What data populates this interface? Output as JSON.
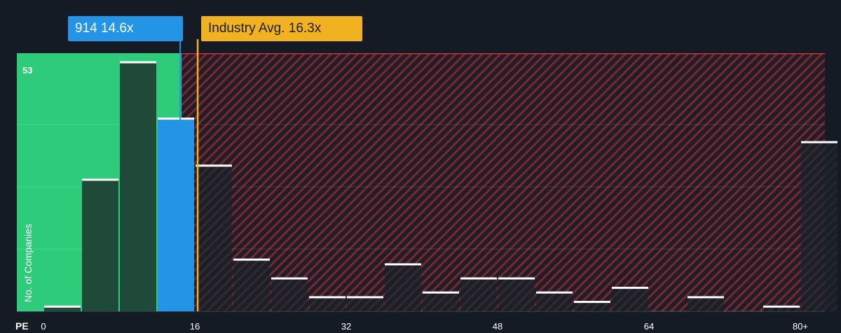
{
  "chart_data": {
    "type": "bar",
    "xlabel": "PE",
    "ylabel": "No. of Companies",
    "ymax_label": "53",
    "ylim": [
      0,
      53
    ],
    "xlim": [
      -4,
      84
    ],
    "x_ticks": [
      {
        "value": 0,
        "label": "0"
      },
      {
        "value": 16,
        "label": "16"
      },
      {
        "value": 32,
        "label": "32"
      },
      {
        "value": 48,
        "label": "48"
      },
      {
        "value": 64,
        "label": "64"
      },
      {
        "value": 80,
        "label": "80+"
      }
    ],
    "bin_width": 4,
    "bins": [
      {
        "start": 0,
        "count": 1
      },
      {
        "start": 4,
        "count": 28
      },
      {
        "start": 8,
        "count": 53
      },
      {
        "start": 12,
        "count": 41
      },
      {
        "start": 16,
        "count": 31
      },
      {
        "start": 20,
        "count": 11
      },
      {
        "start": 24,
        "count": 7
      },
      {
        "start": 28,
        "count": 3
      },
      {
        "start": 32,
        "count": 3
      },
      {
        "start": 36,
        "count": 10
      },
      {
        "start": 40,
        "count": 4
      },
      {
        "start": 44,
        "count": 7
      },
      {
        "start": 48,
        "count": 7
      },
      {
        "start": 52,
        "count": 4
      },
      {
        "start": 56,
        "count": 2
      },
      {
        "start": 60,
        "count": 5
      },
      {
        "start": 64,
        "count": 0
      },
      {
        "start": 68,
        "count": 3
      },
      {
        "start": 72,
        "count": 0
      },
      {
        "start": 76,
        "count": 1
      },
      {
        "start": 80,
        "count": 36
      }
    ],
    "company": {
      "label": "914 14.6x",
      "value": 14.6
    },
    "industry": {
      "label": "Industry Avg. 16.3x",
      "value": 16.3
    },
    "colors": {
      "background": "#151b24",
      "good_zone": "#2ecc7a",
      "bad_zone_stripe": "#c8323c",
      "company": "#2394e6",
      "industry": "#f0b221",
      "bar_dark": "#1f4a3a",
      "bar_top": "#ffffff"
    }
  }
}
